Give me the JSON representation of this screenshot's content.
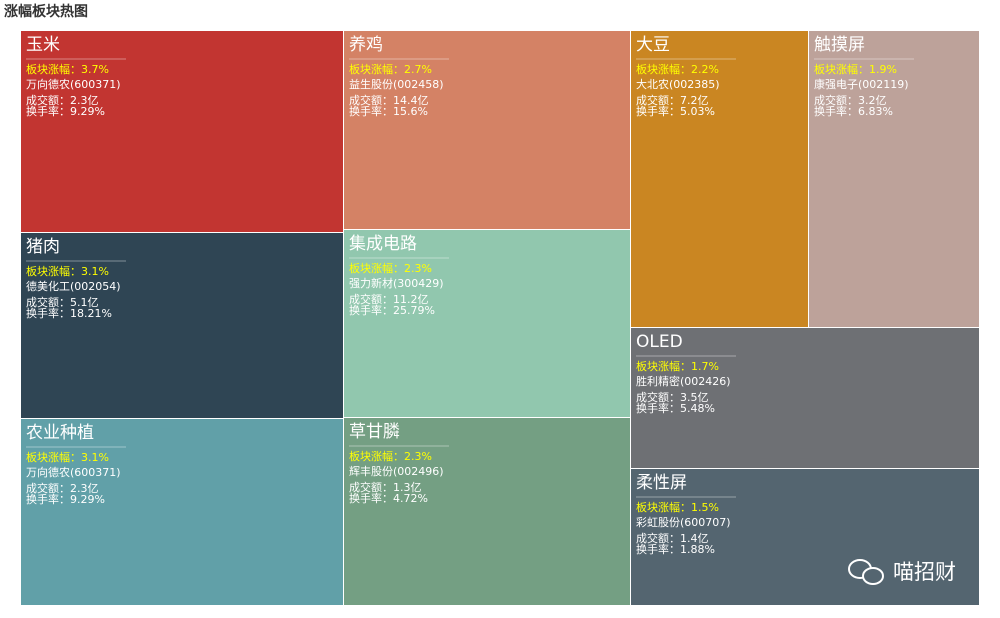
{
  "chart_data": {
    "type": "treemap",
    "title": "涨幅板块热图",
    "watermark": "喵招财",
    "tiles": [
      {
        "name": "玉米",
        "color": "#c23531",
        "change": "板块涨幅：3.7%",
        "stock": "万向德农(600371)",
        "volume": "成交额：2.3亿",
        "turnover": "换手率：9.29%"
      },
      {
        "name": "猪肉",
        "color": "#2f4554",
        "change": "板块涨幅：3.1%",
        "stock": "德美化工(002054)",
        "volume": "成交额：5.1亿",
        "turnover": "换手率：18.21%"
      },
      {
        "name": "农业种植",
        "color": "#61a0a8",
        "change": "板块涨幅：3.1%",
        "stock": "万向德农(600371)",
        "volume": "成交额：2.3亿",
        "turnover": "换手率：9.29%"
      },
      {
        "name": "养鸡",
        "color": "#d48265",
        "change": "板块涨幅：2.7%",
        "stock": "益生股份(002458)",
        "volume": "成交额：14.4亿",
        "turnover": "换手率：15.6%"
      },
      {
        "name": "集成电路",
        "color": "#91c7ae",
        "change": "板块涨幅：2.3%",
        "stock": "强力新材(300429)",
        "volume": "成交额：11.2亿",
        "turnover": "换手率：25.79%"
      },
      {
        "name": "草甘膦",
        "color": "#749f83",
        "change": "板块涨幅：2.3%",
        "stock": "辉丰股份(002496)",
        "volume": "成交额：1.3亿",
        "turnover": "换手率：4.72%"
      },
      {
        "name": "大豆",
        "color": "#ca8622",
        "change": "板块涨幅：2.2%",
        "stock": "大北农(002385)",
        "volume": "成交额：7.2亿",
        "turnover": "换手率：5.03%"
      },
      {
        "name": "触摸屏",
        "color": "#bda29a",
        "change": "板块涨幅：1.9%",
        "stock": "康强电子(002119)",
        "volume": "成交额：3.2亿",
        "turnover": "换手率：6.83%"
      },
      {
        "name": "OLED",
        "color": "#6e7074",
        "change": "板块涨幅：1.7%",
        "stock": "胜利精密(002426)",
        "volume": "成交额：3.5亿",
        "turnover": "换手率：5.48%"
      },
      {
        "name": "柔性屏",
        "color": "#546570",
        "change": "板块涨幅：1.5%",
        "stock": "彩虹股份(600707)",
        "volume": "成交额：1.4亿",
        "turnover": "换手率：1.88%"
      }
    ]
  }
}
